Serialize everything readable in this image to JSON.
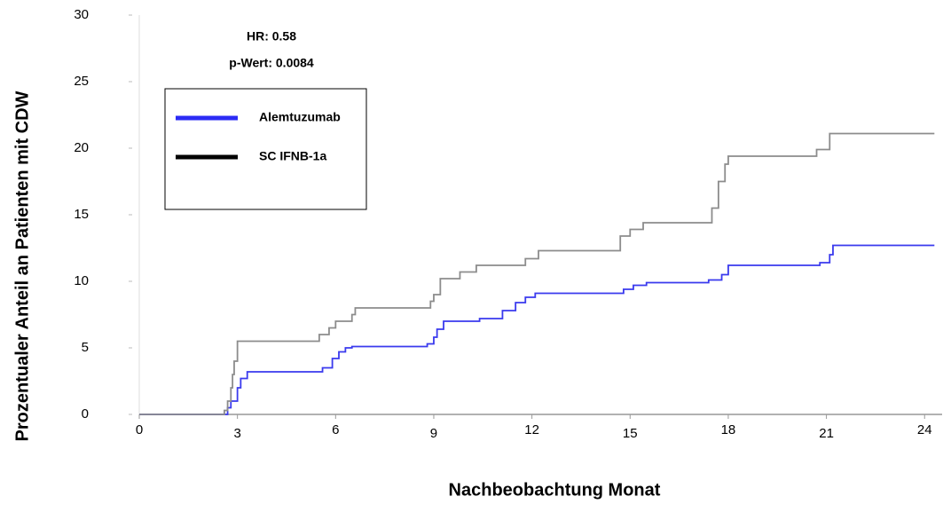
{
  "chart_data": {
    "type": "line",
    "step": "post",
    "x_label": "Nachbeobachtung Monat",
    "y_label": "Prozentualer Anteil an Patienten mit CDW",
    "annotations": [
      "HR: 0.58",
      "p-Wert: 0.0084"
    ],
    "xlim": [
      0,
      24.4
    ],
    "ylim": [
      0,
      30
    ],
    "xticks": [
      0,
      3,
      6,
      9,
      12,
      15,
      18,
      21,
      24
    ],
    "yticks": [
      0,
      5,
      10,
      15,
      20,
      25,
      30
    ],
    "grid": false,
    "legend": "upper left",
    "series": [
      {
        "name": "Alemtuzumab",
        "color": "#3a3aee",
        "legend_color": "#2b2bf5",
        "x": [
          0,
          2.7,
          2.8,
          3.0,
          3.1,
          3.3,
          5.6,
          5.9,
          6.1,
          6.3,
          6.5,
          8.8,
          9.0,
          9.1,
          9.3,
          10.4,
          11.1,
          11.5,
          11.8,
          12.1,
          14.8,
          15.1,
          15.5,
          17.4,
          17.8,
          18.0,
          20.8,
          21.1,
          21.2,
          24.3
        ],
        "values": [
          0,
          0.5,
          1,
          2,
          2.7,
          3.2,
          3.5,
          4.2,
          4.7,
          5,
          5.1,
          5.3,
          5.8,
          6.4,
          7,
          7.2,
          7.8,
          8.4,
          8.8,
          9.1,
          9.4,
          9.7,
          9.9,
          10.1,
          10.5,
          11.2,
          11.4,
          12.0,
          12.7,
          12.7
        ]
      },
      {
        "name": "SC IFNB-1a",
        "color": "#8c8c8c",
        "legend_color": "#000000",
        "x": [
          0,
          2.6,
          2.7,
          2.8,
          2.85,
          2.9,
          3.0,
          5.5,
          5.8,
          6.0,
          6.5,
          6.6,
          8.9,
          9.0,
          9.2,
          9.8,
          10.3,
          11.8,
          12.2,
          14.7,
          15.0,
          15.4,
          17.5,
          17.7,
          17.9,
          18.0,
          20.7,
          21.1,
          24.3
        ],
        "values": [
          0,
          0.3,
          1,
          2,
          3,
          4,
          5.5,
          6,
          6.5,
          7,
          7.5,
          8,
          8.5,
          9,
          10.2,
          10.7,
          11.2,
          11.7,
          12.3,
          13.4,
          13.9,
          14.4,
          15.5,
          17.5,
          18.8,
          19.4,
          19.9,
          21.1,
          21.1
        ]
      }
    ]
  }
}
